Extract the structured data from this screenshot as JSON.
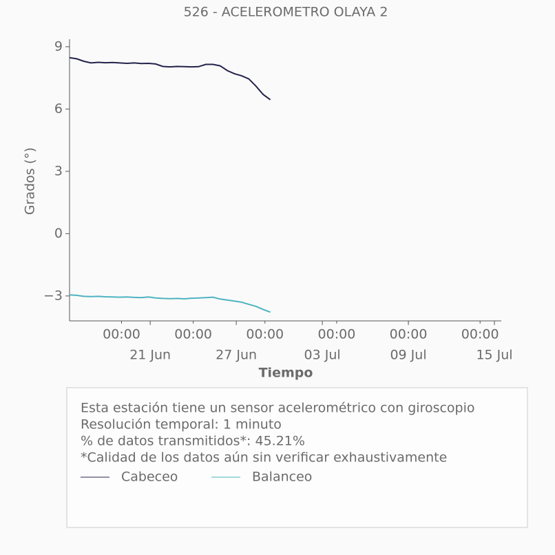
{
  "chart_data": {
    "type": "line",
    "title": "526 - ACELEROMETRO OLAYA 2",
    "y_label": "Grados (°)",
    "x_label": "Tiempo",
    "x": [
      "15 Jun 09:00",
      "15 Jun 21:00",
      "16 Jun 09:00",
      "16 Jun 21:00",
      "17 Jun 09:00",
      "17 Jun 21:00",
      "18 Jun 09:00",
      "18 Jun 21:00",
      "19 Jun 09:00",
      "19 Jun 21:00",
      "20 Jun 09:00",
      "20 Jun 21:00",
      "21 Jun 09:00",
      "21 Jun 21:00",
      "22 Jun 09:00",
      "22 Jun 21:00",
      "23 Jun 09:00",
      "23 Jun 21:00",
      "24 Jun 09:00",
      "24 Jun 21:00",
      "25 Jun 09:00",
      "25 Jun 21:00",
      "26 Jun 09:00",
      "26 Jun 21:00",
      "27 Jun 09:00",
      "27 Jun 21:00",
      "28 Jun 09:00",
      "28 Jun 21:00",
      "29 Jun 09:00"
    ],
    "series": [
      {
        "name": "Cabeceo",
        "color": "#22224a",
        "values": [
          8.47,
          8.42,
          8.3,
          8.22,
          8.25,
          8.23,
          8.24,
          8.22,
          8.2,
          8.22,
          8.19,
          8.2,
          8.17,
          8.05,
          8.03,
          8.05,
          8.04,
          8.03,
          8.04,
          8.15,
          8.15,
          8.08,
          7.85,
          7.7,
          7.6,
          7.45,
          7.1,
          6.7,
          6.45
        ]
      },
      {
        "name": "Balanceo",
        "color": "#4db3c0",
        "values": [
          -2.95,
          -2.97,
          -3.02,
          -3.03,
          -3.02,
          -3.04,
          -3.05,
          -3.06,
          -3.05,
          -3.07,
          -3.08,
          -3.05,
          -3.1,
          -3.12,
          -3.13,
          -3.12,
          -3.14,
          -3.11,
          -3.1,
          -3.08,
          -3.06,
          -3.15,
          -3.2,
          -3.25,
          -3.3,
          -3.4,
          -3.5,
          -3.65,
          -3.78
        ]
      }
    ],
    "xlim": [
      "15 Jun 09:00",
      "15 Jul 11:30"
    ],
    "xticks": [
      {
        "value": "19 Jun 00:00",
        "label": "00:00"
      },
      {
        "value": "24 Jun 00:00",
        "label": "00:00"
      },
      {
        "value": "29 Jun 00:00",
        "label": "00:00"
      },
      {
        "value": "04 Jul 00:00",
        "label": "00:00"
      },
      {
        "value": "09 Jul 00:00",
        "label": "00:00"
      },
      {
        "value": "14 Jul 00:00",
        "label": "00:00"
      }
    ],
    "xticks_dates": [
      {
        "value": "21 Jun 00:00",
        "label": "21 Jun"
      },
      {
        "value": "27 Jun 00:00",
        "label": "27 Jun"
      },
      {
        "value": "03 Jul 00:00",
        "label": "03 Jul"
      },
      {
        "value": "09 Jul 00:00",
        "label": "09 Jul"
      },
      {
        "value": "15 Jul 00:00",
        "label": "15 Jul"
      }
    ],
    "ylim": [
      -4.2,
      9.36
    ],
    "yticks": [
      {
        "value": -3,
        "label": "−3"
      },
      0,
      3,
      6,
      9
    ],
    "notes": [
      "Esta estación tiene un sensor acelerométrico con giroscopio",
      "Resolución temporal: 1 minuto",
      "% de datos transmitidos*: 45.21%",
      "*Calidad de los datos aún sin verificar exhaustivamente"
    ]
  }
}
